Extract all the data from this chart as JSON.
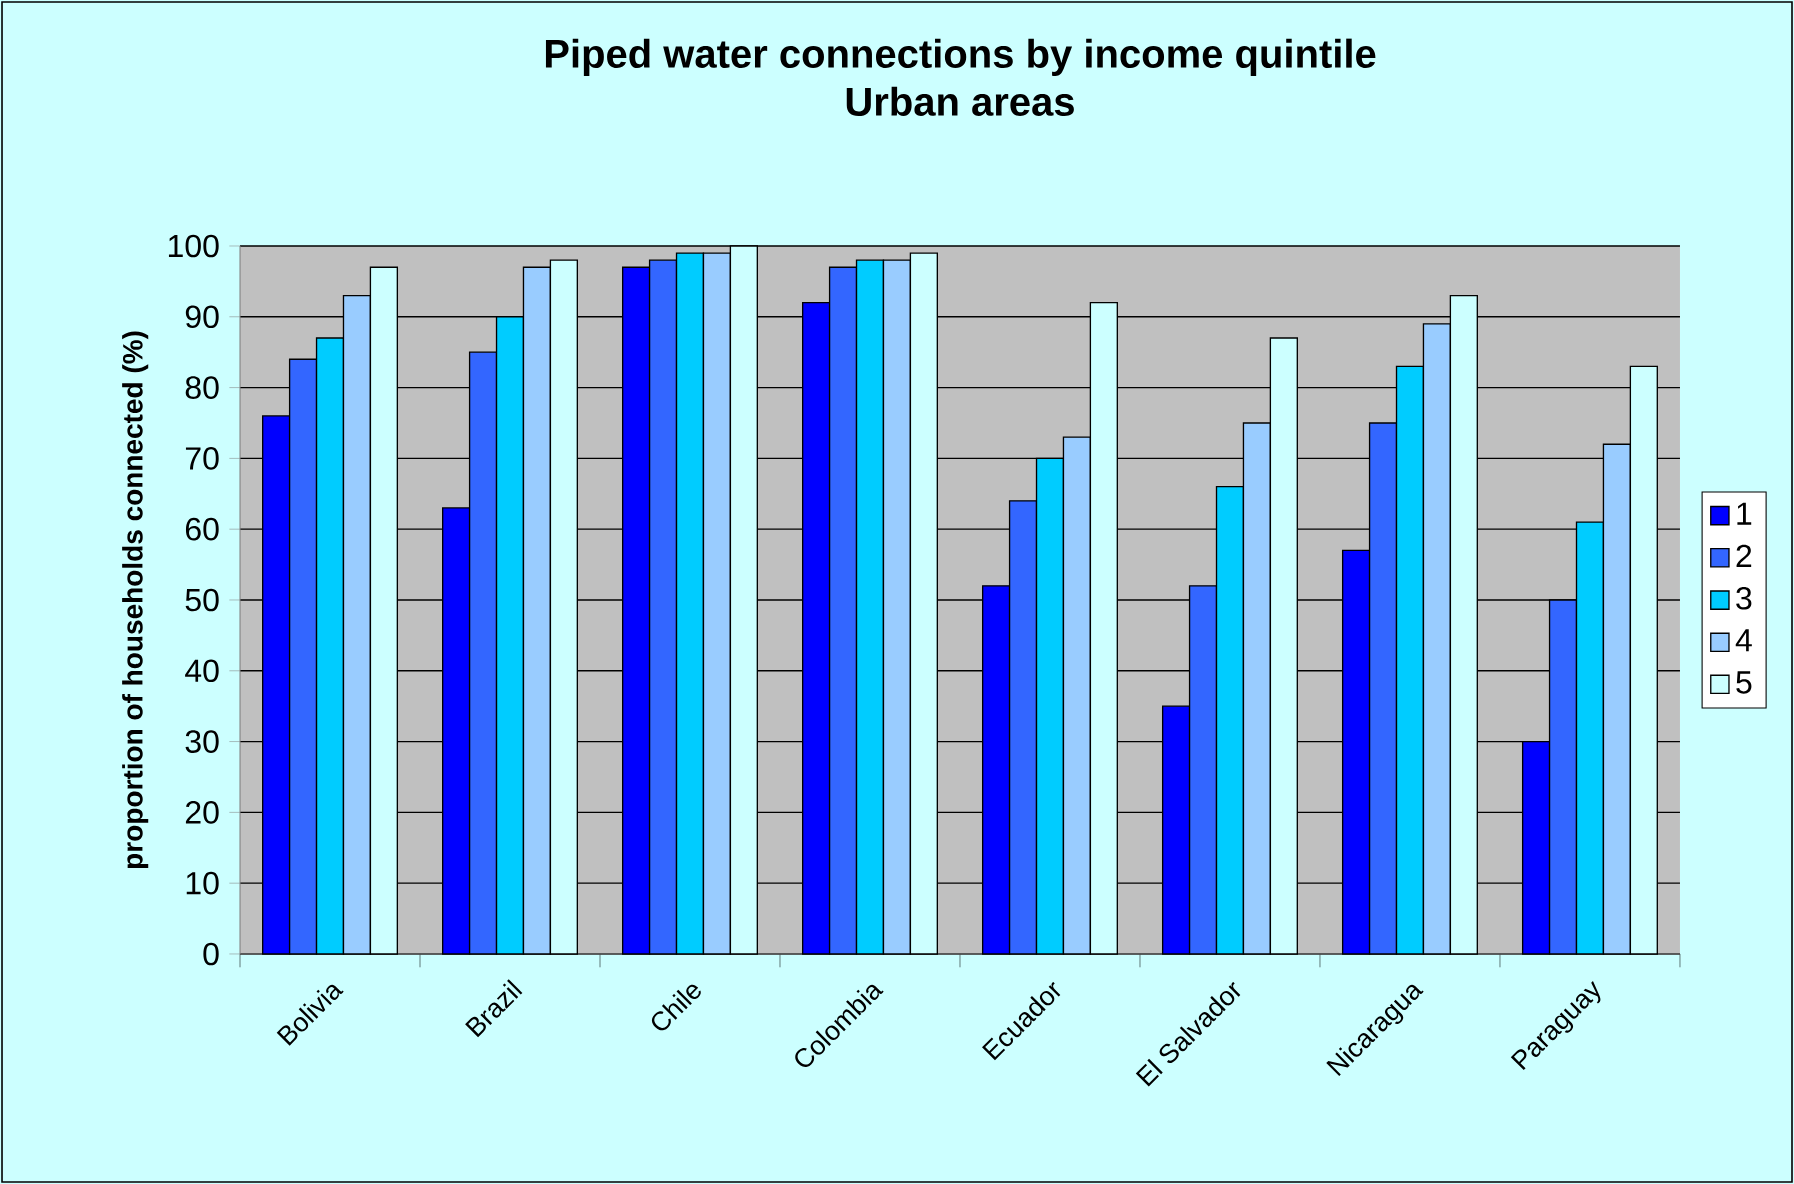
{
  "chart_data": {
    "type": "bar",
    "title": "Piped water connections by income quintile",
    "subtitle": "Urban areas",
    "ylabel": "proportion of households connected (%)",
    "categories": [
      "Bolivia",
      "Brazil",
      "Chile",
      "Colombia",
      "Ecuador",
      "El Salvador",
      "Nicaragua",
      "Paraguay"
    ],
    "series": [
      {
        "name": "1",
        "color": "#0000ff",
        "values": [
          76,
          63,
          97,
          92,
          52,
          35,
          57,
          30
        ]
      },
      {
        "name": "2",
        "color": "#3366ff",
        "values": [
          84,
          85,
          98,
          97,
          64,
          52,
          75,
          50
        ]
      },
      {
        "name": "3",
        "color": "#00ccff",
        "values": [
          87,
          90,
          99,
          98,
          70,
          66,
          83,
          61
        ]
      },
      {
        "name": "4",
        "color": "#99ccff",
        "values": [
          93,
          97,
          99,
          98,
          73,
          75,
          89,
          72
        ]
      },
      {
        "name": "5",
        "color": "#ccffff",
        "values": [
          97,
          98,
          100,
          99,
          92,
          87,
          93,
          83
        ]
      }
    ],
    "ylim": [
      0,
      100
    ],
    "yticks": [
      0,
      10,
      20,
      30,
      40,
      50,
      60,
      70,
      80,
      90,
      100
    ],
    "grid": "y",
    "legend": "right"
  }
}
